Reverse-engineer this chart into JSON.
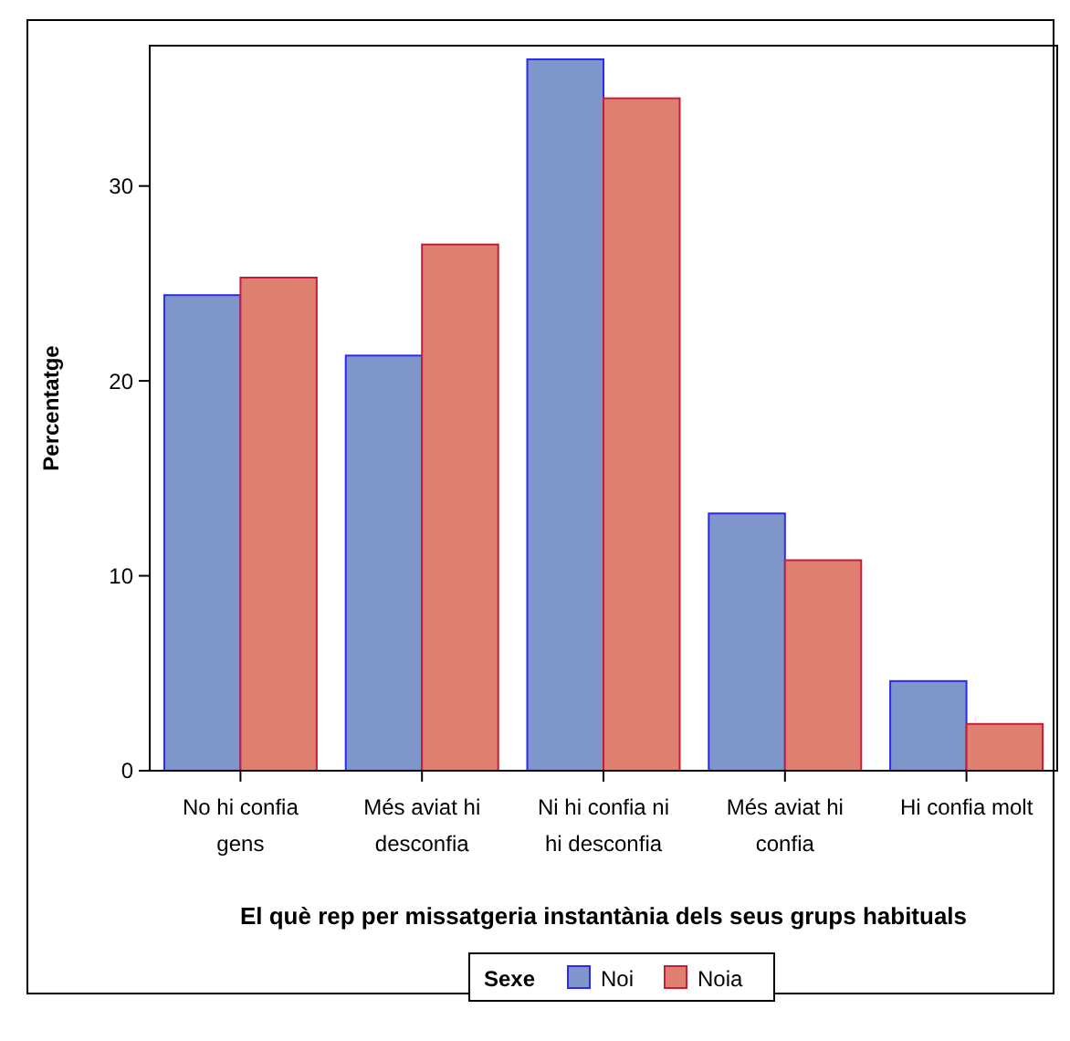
{
  "chart_data": {
    "type": "bar",
    "xlabel": "El què rep per missatgeria instantània dels seus grups habituals",
    "ylabel": "Percentatge",
    "legend_title": "Sexe",
    "legend": "bottom",
    "categories": [
      "No hi confia gens",
      "Més aviat hi desconfia",
      "Ni hi confia ni hi desconfia",
      "Més aviat hi confia",
      "Hi confia molt"
    ],
    "series": [
      {
        "name": "Noi",
        "color": "#7f96cb",
        "values": [
          24.4,
          21.3,
          36.5,
          13.2,
          4.6
        ]
      },
      {
        "name": "Noia",
        "color": "#df7f6f",
        "values": [
          25.3,
          27.0,
          34.5,
          10.8,
          2.4
        ]
      }
    ],
    "ylim": [
      0,
      37.2
    ],
    "yticks": [
      0,
      10,
      20,
      30
    ],
    "grid": false
  }
}
